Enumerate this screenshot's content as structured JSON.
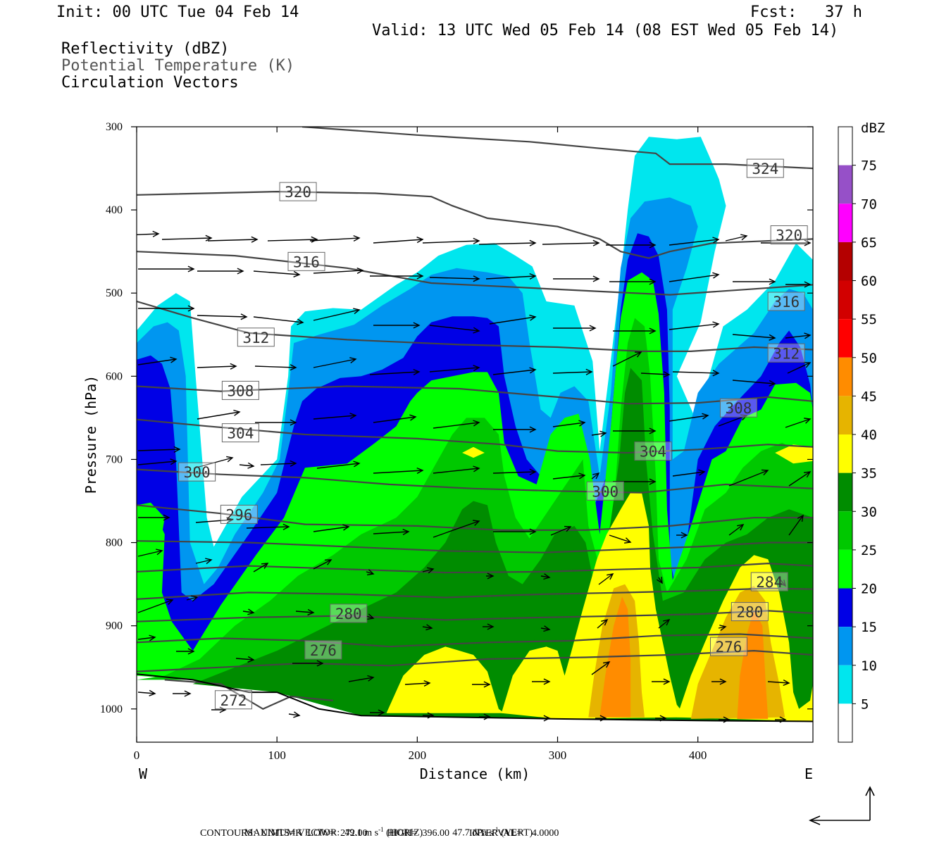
{
  "header": {
    "init": "Init: 00 UTC Tue 04 Feb 14",
    "fcst": "Fcst:   37 h",
    "valid": "Valid: 13 UTC Wed 05 Feb 14 (08 EST Wed 05 Feb 14)",
    "field1": "Reflectivity (dBZ)",
    "field2": "Potential Temperature (K)",
    "field3": "Circulation Vectors"
  },
  "footer": {
    "max_vector_label": "MAXIMUM VECTOR:",
    "max_horiz_value": "49.1 m s",
    "max_horiz_sup": "-1",
    "max_horiz_unit": " (HORIZ)",
    "max_vert_value": "47.7 dPa s",
    "max_vert_sup": "-1",
    "max_vert_unit": " (VERT)",
    "contours_line": "CONTOURS:  UNITS=K  LOW=  272.00        HIGH=  396.00        INTERVAL=    4.0000"
  },
  "colors": {
    "background": "#ffffff",
    "contour": "#444444",
    "vector": "#000000"
  },
  "chart_data": {
    "type": "heatmap",
    "xlabel": "Distance (km)",
    "ylabel": "Pressure (hPa)",
    "xlim": [
      0,
      482
    ],
    "ylim": [
      1040,
      300
    ],
    "x_ticks": [
      0,
      100,
      200,
      300,
      400
    ],
    "y_ticks": [
      300,
      400,
      500,
      600,
      700,
      800,
      900,
      1000
    ],
    "x_end_labels": {
      "left": "W",
      "right": "E"
    },
    "colorbar": {
      "title": "dBZ",
      "tick_labels": [
        "5",
        "10",
        "15",
        "20",
        "25",
        "30",
        "35",
        "40",
        "45",
        "50",
        "55",
        "60",
        "65",
        "70",
        "75"
      ],
      "colors": [
        "#ffffff",
        "#00e6ee",
        "#0096f0",
        "#0000e6",
        "#00ff00",
        "#00c800",
        "#008c00",
        "#ffff00",
        "#e6b400",
        "#ff8c00",
        "#ff0000",
        "#d20000",
        "#b40000",
        "#ff00ff",
        "#9650c8",
        "#ffffff"
      ]
    },
    "theta_contour_labels": [
      {
        "value": "324",
        "x": 448,
        "p": 350
      },
      {
        "value": "320",
        "x": 115,
        "p": 378
      },
      {
        "value": "320",
        "x": 465,
        "p": 430
      },
      {
        "value": "316",
        "x": 121,
        "p": 462
      },
      {
        "value": "316",
        "x": 463,
        "p": 510
      },
      {
        "value": "312",
        "x": 85,
        "p": 553
      },
      {
        "value": "312",
        "x": 463,
        "p": 572
      },
      {
        "value": "308",
        "x": 74,
        "p": 617
      },
      {
        "value": "308",
        "x": 429,
        "p": 638
      },
      {
        "value": "304",
        "x": 74,
        "p": 668
      },
      {
        "value": "304",
        "x": 368,
        "p": 690
      },
      {
        "value": "300",
        "x": 43,
        "p": 715
      },
      {
        "value": "300",
        "x": 334,
        "p": 738
      },
      {
        "value": "296",
        "x": 73,
        "p": 766
      },
      {
        "value": "284",
        "x": 451,
        "p": 847
      },
      {
        "value": "280",
        "x": 151,
        "p": 885
      },
      {
        "value": "280",
        "x": 437,
        "p": 883
      },
      {
        "value": "276",
        "x": 133,
        "p": 929
      },
      {
        "value": "276",
        "x": 422,
        "p": 925
      },
      {
        "value": "272",
        "x": 69,
        "p": 989
      }
    ]
  }
}
